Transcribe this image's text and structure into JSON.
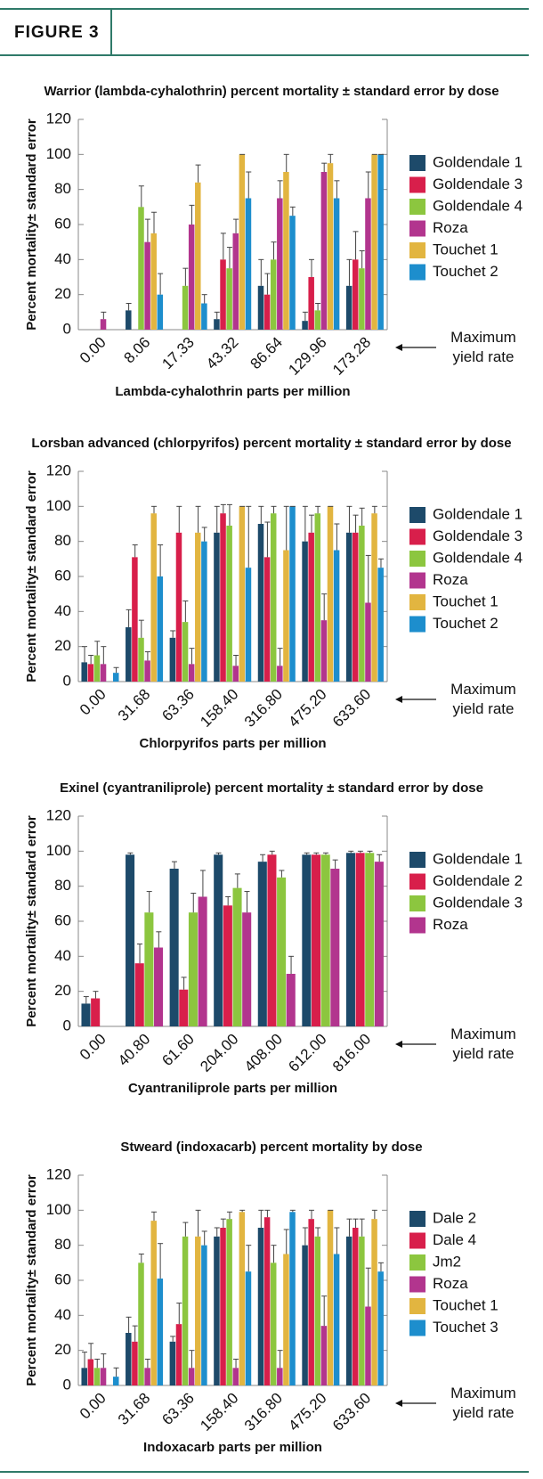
{
  "header": {
    "title": "FIGURE 3"
  },
  "chart_data": [
    {
      "type": "bar",
      "title": "Warrior (lambda-cyhalothrin) percent mortality ± standard error by dose",
      "x_label": "Lambda-cyhalothrin parts per million",
      "y_label": "Percent mortality± standard error",
      "annotation": "Maximum yield rate",
      "categories": [
        "0.00",
        "8.06",
        "17.33",
        "43.32",
        "86.64",
        "129.96",
        "173.28"
      ],
      "ylim": [
        0,
        120
      ],
      "yticks": [
        0,
        20,
        40,
        60,
        80,
        100,
        120
      ],
      "series": [
        {
          "name": "Goldendale 1",
          "color": "#1d4a6a",
          "values": [
            0,
            11,
            0,
            6,
            25,
            5,
            25
          ],
          "errors": [
            0,
            4,
            0,
            4,
            15,
            5,
            15
          ]
        },
        {
          "name": "Goldendale 3",
          "color": "#d81f4b",
          "values": [
            0,
            0,
            0,
            40,
            20,
            30,
            40
          ],
          "errors": [
            0,
            0,
            0,
            15,
            12,
            10,
            16
          ]
        },
        {
          "name": "Goldendale 4",
          "color": "#8cc63f",
          "values": [
            0,
            70,
            25,
            35,
            40,
            11,
            35
          ],
          "errors": [
            0,
            12,
            10,
            12,
            10,
            4,
            10
          ]
        },
        {
          "name": "Roza",
          "color": "#b2358e",
          "values": [
            6,
            50,
            60,
            55,
            75,
            90,
            75
          ],
          "errors": [
            4,
            13,
            11,
            8,
            10,
            5,
            15
          ]
        },
        {
          "name": "Touchet 1",
          "color": "#e2b540",
          "values": [
            0,
            55,
            84,
            100,
            90,
            95,
            100
          ],
          "errors": [
            0,
            12,
            10,
            0,
            10,
            5,
            0
          ]
        },
        {
          "name": "Touchet 2",
          "color": "#1d8ecd",
          "values": [
            0,
            20,
            15,
            75,
            65,
            75,
            100
          ],
          "errors": [
            0,
            12,
            5,
            15,
            5,
            10,
            0
          ]
        }
      ]
    },
    {
      "type": "bar",
      "title": "Lorsban advanced (chlorpyrifos) percent mortality ± standard error by dose",
      "x_label": "Chlorpyrifos parts per million",
      "y_label": "Percent mortality± standard error",
      "annotation": "Maximum yield rate",
      "categories": [
        "0.00",
        "31.68",
        "63.36",
        "158.40",
        "316.80",
        "475.20",
        "633.60"
      ],
      "ylim": [
        0,
        120
      ],
      "yticks": [
        0,
        20,
        40,
        60,
        80,
        100,
        120
      ],
      "series": [
        {
          "name": "Goldendale 1",
          "color": "#1d4a6a",
          "values": [
            11,
            31,
            25,
            85,
            90,
            80,
            85
          ],
          "errors": [
            9,
            10,
            4,
            15,
            10,
            20,
            15
          ]
        },
        {
          "name": "Goldendale 3",
          "color": "#d81f4b",
          "values": [
            10,
            71,
            85,
            96,
            71,
            85,
            85
          ],
          "errors": [
            5,
            7,
            15,
            5,
            20,
            10,
            10
          ]
        },
        {
          "name": "Goldendale 4",
          "color": "#8cc63f",
          "values": [
            15,
            25,
            34,
            89,
            96,
            96,
            89
          ],
          "errors": [
            8,
            10,
            12,
            12,
            4,
            4,
            10
          ]
        },
        {
          "name": "Roza",
          "color": "#b2358e",
          "values": [
            10,
            12,
            10,
            9,
            9,
            35,
            45
          ],
          "errors": [
            10,
            5,
            9,
            6,
            10,
            15,
            27
          ]
        },
        {
          "name": "Touchet 1",
          "color": "#e2b540",
          "values": [
            0,
            96,
            85,
            100,
            75,
            100,
            96
          ],
          "errors": [
            0,
            4,
            15,
            0,
            25,
            0,
            4
          ]
        },
        {
          "name": "Touchet 2",
          "color": "#1d8ecd",
          "values": [
            5,
            60,
            80,
            65,
            100,
            75,
            65
          ],
          "errors": [
            3,
            18,
            8,
            35,
            0,
            15,
            5
          ]
        }
      ]
    },
    {
      "type": "bar",
      "title": "Exinel (cyantraniliprole) percent mortality ± standard error by dose",
      "x_label": "Cyantraniliprole parts per million",
      "y_label": "Percent mortality± standard error",
      "annotation": "Maximum yield rate",
      "categories": [
        "0.00",
        "40.80",
        "61.60",
        "204.00",
        "408.00",
        "612.00",
        "816.00"
      ],
      "ylim": [
        0,
        120
      ],
      "yticks": [
        0,
        20,
        40,
        60,
        80,
        100,
        120
      ],
      "series": [
        {
          "name": "Goldendale 1",
          "color": "#1d4a6a",
          "values": [
            13,
            98,
            90,
            98,
            94,
            98,
            99
          ],
          "errors": [
            4,
            1,
            4,
            1,
            4,
            1,
            1
          ]
        },
        {
          "name": "Goldendale 2",
          "color": "#d81f4b",
          "values": [
            16,
            36,
            21,
            69,
            98,
            98,
            99
          ],
          "errors": [
            4,
            11,
            7,
            5,
            2,
            1,
            1
          ]
        },
        {
          "name": "Goldendale 3",
          "color": "#8cc63f",
          "values": [
            0,
            65,
            65,
            79,
            85,
            98,
            99
          ],
          "errors": [
            0,
            12,
            11,
            8,
            4,
            1,
            1
          ]
        },
        {
          "name": "Roza",
          "color": "#b2358e",
          "values": [
            0,
            45,
            74,
            65,
            30,
            90,
            94
          ],
          "errors": [
            0,
            9,
            15,
            12,
            10,
            5,
            4
          ]
        }
      ]
    },
    {
      "type": "bar",
      "title": "Stweard (indoxacarb) percent mortality by dose",
      "x_label": "Indoxacarb parts per million",
      "y_label": "Percent mortality± standard error",
      "annotation": "Maximum yield rate",
      "categories": [
        "0.00",
        "31.68",
        "63.36",
        "158.40",
        "316.80",
        "475.20",
        "633.60"
      ],
      "ylim": [
        0,
        120
      ],
      "yticks": [
        0,
        20,
        40,
        60,
        80,
        100,
        120
      ],
      "series": [
        {
          "name": "Dale 2",
          "color": "#1d4a6a",
          "values": [
            10,
            30,
            25,
            85,
            90,
            80,
            85
          ],
          "errors": [
            9,
            9,
            3,
            5,
            10,
            10,
            10
          ]
        },
        {
          "name": "Dale 4",
          "color": "#d81f4b",
          "values": [
            15,
            25,
            35,
            90,
            96,
            95,
            90
          ],
          "errors": [
            9,
            9,
            12,
            5,
            4,
            5,
            5
          ]
        },
        {
          "name": "Jm2",
          "color": "#8cc63f",
          "values": [
            10,
            70,
            85,
            95,
            70,
            85,
            85
          ],
          "errors": [
            5,
            5,
            8,
            4,
            10,
            5,
            10
          ]
        },
        {
          "name": "Roza",
          "color": "#b2358e",
          "values": [
            10,
            10,
            10,
            10,
            10,
            34,
            45
          ],
          "errors": [
            8,
            5,
            10,
            5,
            10,
            17,
            22
          ]
        },
        {
          "name": "Touchet 1",
          "color": "#e2b540",
          "values": [
            0,
            94,
            85,
            99,
            75,
            100,
            95
          ],
          "errors": [
            0,
            5,
            15,
            1,
            14,
            0,
            5
          ]
        },
        {
          "name": "Touchet 3",
          "color": "#1d8ecd",
          "values": [
            5,
            61,
            80,
            65,
            99,
            75,
            65
          ],
          "errors": [
            5,
            20,
            8,
            15,
            1,
            15,
            5
          ]
        }
      ]
    }
  ]
}
